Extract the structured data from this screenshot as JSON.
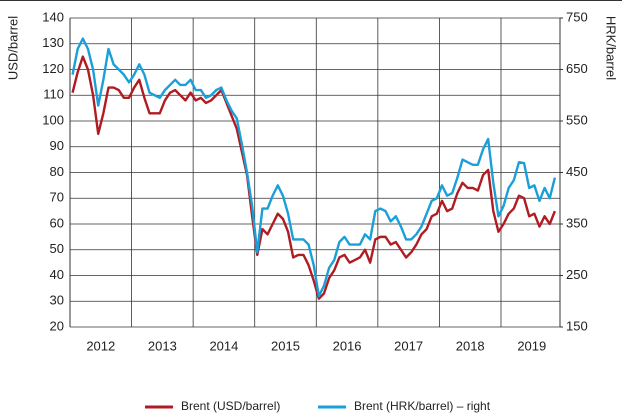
{
  "chart_data": {
    "type": "line",
    "y_label": "USD/barrel",
    "y2_label": "HRK/barrel",
    "categories": [
      null,
      null,
      null,
      null,
      null,
      null,
      "2012",
      null,
      null,
      null,
      null,
      null,
      null,
      null,
      null,
      null,
      null,
      null,
      "2013",
      null,
      null,
      null,
      null,
      null,
      null,
      null,
      null,
      null,
      null,
      null,
      "2014",
      null,
      null,
      null,
      null,
      null,
      null,
      null,
      null,
      null,
      null,
      null,
      "2015",
      null,
      null,
      null,
      null,
      null,
      null,
      null,
      null,
      null,
      null,
      null,
      "2016",
      null,
      null,
      null,
      null,
      null,
      null,
      null,
      null,
      null,
      null,
      null,
      "2017",
      null,
      null,
      null,
      null,
      null,
      null,
      null,
      null,
      null,
      null,
      null,
      "2018",
      null,
      null,
      null,
      null,
      null,
      null,
      null,
      null,
      null,
      null,
      null,
      "2019",
      null,
      null,
      null,
      null
    ],
    "series": [
      {
        "name": "Brent (USD/barrel)",
        "color": "#b01c22",
        "axis": "y",
        "values": [
          111,
          119,
          125,
          120,
          110,
          95,
          103,
          113,
          113,
          112,
          109,
          109,
          113,
          116,
          109,
          103,
          103,
          103,
          108,
          111,
          112,
          110,
          108,
          111,
          108,
          109,
          107,
          108,
          110,
          112,
          107,
          102,
          97,
          88,
          79,
          63,
          48,
          58,
          56,
          60,
          64,
          62,
          57,
          47,
          48,
          48,
          44,
          38,
          31,
          33,
          39,
          42,
          47,
          48,
          45,
          46,
          47,
          50,
          45,
          54,
          55,
          55,
          52,
          53,
          50,
          47,
          49,
          52,
          56,
          58,
          63,
          64,
          69,
          65,
          66,
          72,
          76,
          74,
          74,
          73,
          79,
          81,
          65,
          57,
          60,
          64,
          66,
          71,
          70,
          63,
          64,
          59,
          63,
          60,
          65
        ]
      },
      {
        "name": "Brent (HRK/barrel) – right",
        "color": "#1a9fd9",
        "axis": "y2",
        "values": [
          640,
          690,
          710,
          690,
          650,
          580,
          630,
          690,
          660,
          650,
          640,
          625,
          640,
          660,
          640,
          605,
          600,
          595,
          610,
          620,
          630,
          620,
          620,
          630,
          610,
          610,
          595,
          600,
          610,
          615,
          590,
          570,
          555,
          505,
          450,
          385,
          295,
          380,
          380,
          405,
          425,
          405,
          370,
          320,
          320,
          320,
          310,
          270,
          210,
          230,
          265,
          280,
          315,
          325,
          310,
          310,
          310,
          330,
          320,
          375,
          380,
          375,
          355,
          365,
          345,
          320,
          320,
          330,
          345,
          370,
          395,
          400,
          425,
          405,
          410,
          440,
          475,
          470,
          465,
          465,
          495,
          515,
          430,
          365,
          385,
          420,
          435,
          470,
          468,
          420,
          425,
          395,
          420,
          400,
          440
        ]
      }
    ],
    "ylim": [
      20,
      140
    ],
    "yticks": [
      20,
      30,
      40,
      50,
      60,
      70,
      80,
      90,
      100,
      110,
      120,
      130,
      140
    ],
    "y2lim": [
      150,
      750
    ],
    "y2ticks": [
      150,
      250,
      350,
      450,
      550,
      650,
      750
    ],
    "grid": true,
    "legend": "bottom"
  }
}
